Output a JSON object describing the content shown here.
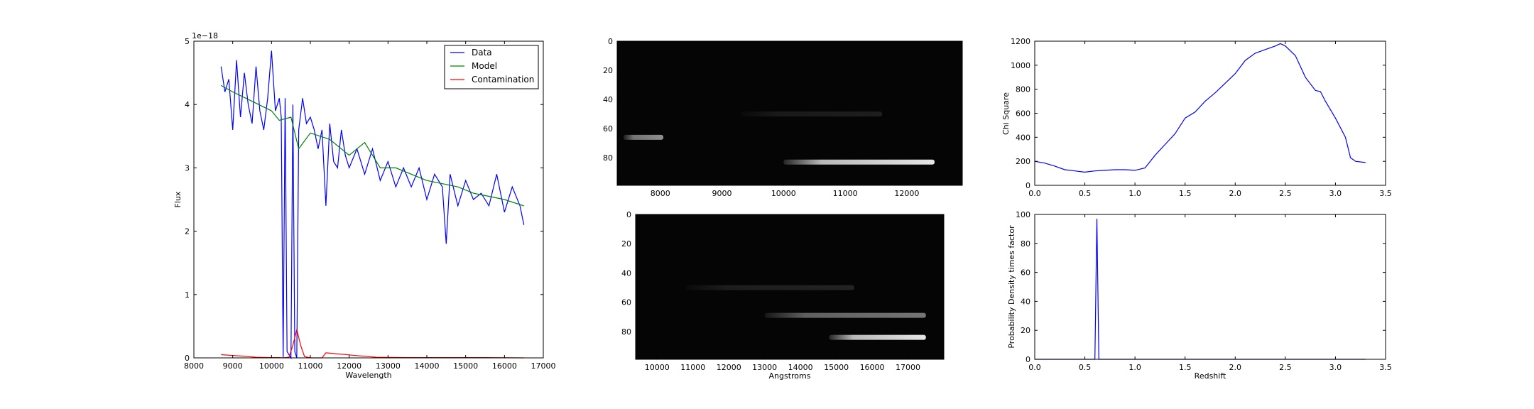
{
  "chart_data": [
    {
      "type": "line",
      "xlabel": "Wavelength",
      "ylabel": "Flux",
      "scale_label": "1e−18",
      "xlim": [
        8000,
        17000
      ],
      "ylim": [
        0,
        5
      ],
      "xticks": [
        "8000",
        "9000",
        "10000",
        "11000",
        "12000",
        "13000",
        "14000",
        "15000",
        "16000",
        "17000"
      ],
      "yticks": [
        "0",
        "1",
        "2",
        "3",
        "4",
        "5"
      ],
      "legend": "top-right",
      "series": [
        {
          "name": "Data",
          "color": "#0000ff",
          "x": [
            8700,
            8800,
            8900,
            9000,
            9100,
            9200,
            9300,
            9400,
            9500,
            9600,
            9700,
            9800,
            9900,
            10000,
            10100,
            10200,
            10250,
            10300,
            10350,
            10400,
            10500,
            10550,
            10600,
            10650,
            10700,
            10800,
            10900,
            11000,
            11100,
            11200,
            11300,
            11400,
            11500,
            11600,
            11700,
            11800,
            11900,
            12000,
            12200,
            12400,
            12600,
            12800,
            13000,
            13200,
            13400,
            13600,
            13800,
            14000,
            14200,
            14400,
            14500,
            14600,
            14800,
            15000,
            15200,
            15400,
            15600,
            15800,
            16000,
            16200,
            16400,
            16500
          ],
          "y": [
            4.6,
            4.2,
            4.4,
            3.6,
            4.7,
            3.8,
            4.5,
            4.0,
            3.7,
            4.6,
            3.9,
            3.6,
            4.1,
            4.85,
            3.9,
            4.1,
            3.8,
            0,
            4.1,
            0.1,
            0,
            4.0,
            0.1,
            0,
            3.6,
            4.1,
            3.7,
            3.8,
            3.6,
            3.3,
            3.6,
            2.4,
            3.7,
            3.1,
            3.0,
            3.6,
            3.2,
            3.0,
            3.3,
            2.9,
            3.3,
            2.8,
            3.1,
            2.7,
            3.0,
            2.7,
            3.0,
            2.5,
            2.9,
            2.7,
            1.8,
            2.9,
            2.4,
            2.8,
            2.5,
            2.6,
            2.4,
            2.9,
            2.3,
            2.7,
            2.4,
            2.1
          ]
        },
        {
          "name": "Model",
          "color": "#008000",
          "x": [
            8700,
            9000,
            9500,
            10000,
            10200,
            10500,
            10700,
            11000,
            11500,
            12000,
            12400,
            12800,
            13200,
            13600,
            14000,
            14400,
            14800,
            15200,
            15600,
            16000,
            16500
          ],
          "y": [
            4.3,
            4.2,
            4.05,
            3.9,
            3.75,
            3.8,
            3.3,
            3.55,
            3.45,
            3.2,
            3.4,
            3.0,
            3.0,
            2.9,
            2.8,
            2.75,
            2.7,
            2.6,
            2.55,
            2.5,
            2.4
          ]
        },
        {
          "name": "Contamination",
          "color": "#ff0000",
          "x": [
            8700,
            9200,
            9600,
            10000,
            10200,
            10300,
            10450,
            10550,
            10650,
            10750,
            10850,
            11000,
            11300,
            11400,
            12300,
            12700,
            13500,
            14500,
            15500,
            16500
          ],
          "y": [
            0.05,
            0.03,
            0.01,
            0.005,
            0.005,
            0,
            0.01,
            0.2,
            0.45,
            0.2,
            0.02,
            0,
            0,
            0.08,
            0.03,
            0.01,
            0.005,
            0.005,
            0.005,
            0
          ]
        }
      ]
    },
    {
      "type": "heatmap",
      "xlabel": "",
      "ylabel": "",
      "xlim": [
        7300,
        12900
      ],
      "ylim": [
        99,
        0
      ],
      "xticks": [
        {
          "label": "8000",
          "value": 8000
        },
        {
          "label": "9000",
          "value": 9000
        },
        {
          "label": "10000",
          "value": 10000
        },
        {
          "label": "11000",
          "value": 11000
        },
        {
          "label": "12000",
          "value": 12000
        }
      ],
      "yticks": [
        {
          "label": "0",
          "value": 0
        },
        {
          "label": "20",
          "value": 20
        },
        {
          "label": "40",
          "value": 40
        },
        {
          "label": "60",
          "value": 60
        },
        {
          "label": "80",
          "value": 80
        }
      ],
      "streaks": [
        {
          "x0": 7400,
          "x1": 8050,
          "y": 66,
          "intensity": 0.55
        },
        {
          "x0": 9300,
          "x1": 11600,
          "y": 50,
          "intensity": 0.1
        },
        {
          "x0": 10000,
          "x1": 12450,
          "y": 83,
          "intensity": 0.9
        }
      ]
    },
    {
      "type": "heatmap",
      "xlabel": "Angstroms",
      "ylabel": "",
      "xlim": [
        9400,
        18000
      ],
      "ylim": [
        99,
        0
      ],
      "xticks": [
        {
          "label": "10000",
          "value": 10000
        },
        {
          "label": "11000",
          "value": 11000
        },
        {
          "label": "12000",
          "value": 12000
        },
        {
          "label": "13000",
          "value": 13000
        },
        {
          "label": "14000",
          "value": 14000
        },
        {
          "label": "15000",
          "value": 15000
        },
        {
          "label": "16000",
          "value": 16000
        },
        {
          "label": "17000",
          "value": 17000
        }
      ],
      "yticks": [
        {
          "label": "0",
          "value": 0
        },
        {
          "label": "20",
          "value": 20
        },
        {
          "label": "40",
          "value": 40
        },
        {
          "label": "60",
          "value": 60
        },
        {
          "label": "80",
          "value": 80
        }
      ],
      "streaks": [
        {
          "x0": 10800,
          "x1": 15500,
          "y": 50,
          "intensity": 0.12
        },
        {
          "x0": 13000,
          "x1": 17500,
          "y": 69,
          "intensity": 0.45
        },
        {
          "x0": 14800,
          "x1": 17500,
          "y": 84,
          "intensity": 0.9
        }
      ]
    },
    {
      "type": "line",
      "xlabel": "",
      "ylabel": "Chi Square",
      "xlim": [
        0,
        3.5
      ],
      "ylim": [
        0,
        1200
      ],
      "xticks": [
        "0.0",
        "0.5",
        "1.0",
        "1.5",
        "2.0",
        "2.5",
        "3.0",
        "3.5"
      ],
      "yticks": [
        "0",
        "200",
        "400",
        "600",
        "800",
        "1000",
        "1200"
      ],
      "series": [
        {
          "color": "#0000ff",
          "x": [
            0,
            0.1,
            0.2,
            0.3,
            0.4,
            0.5,
            0.6,
            0.7,
            0.8,
            0.9,
            1.0,
            1.1,
            1.2,
            1.3,
            1.4,
            1.5,
            1.6,
            1.7,
            1.8,
            1.9,
            2.0,
            2.1,
            2.2,
            2.3,
            2.4,
            2.45,
            2.5,
            2.6,
            2.7,
            2.8,
            2.85,
            2.9,
            3.0,
            3.1,
            3.15,
            3.2,
            3.3
          ],
          "y": [
            200,
            185,
            160,
            130,
            120,
            110,
            120,
            125,
            130,
            130,
            125,
            145,
            250,
            340,
            430,
            560,
            610,
            700,
            770,
            850,
            930,
            1040,
            1100,
            1130,
            1160,
            1180,
            1160,
            1080,
            900,
            790,
            780,
            700,
            560,
            400,
            230,
            200,
            190
          ]
        }
      ]
    },
    {
      "type": "line",
      "xlabel": "Redshift",
      "ylabel": "Probability Density times factor",
      "xlim": [
        0,
        3.5
      ],
      "ylim": [
        0,
        100
      ],
      "xticks": [
        "0.0",
        "0.5",
        "1.0",
        "1.5",
        "2.0",
        "2.5",
        "3.0",
        "3.5"
      ],
      "yticks": [
        "0",
        "20",
        "40",
        "60",
        "80",
        "100"
      ],
      "series": [
        {
          "color": "#0000ff",
          "x": [
            0,
            0.55,
            0.6,
            0.62,
            0.64,
            0.69,
            3.3
          ],
          "y": [
            0,
            0,
            0,
            97,
            0,
            0,
            0
          ]
        }
      ]
    }
  ]
}
